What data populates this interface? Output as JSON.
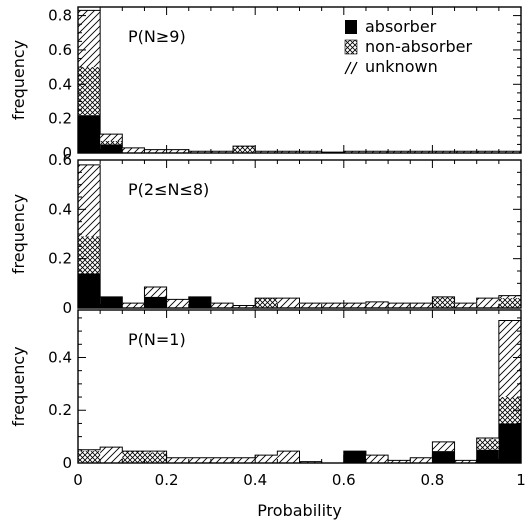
{
  "chart_data": [
    {
      "type": "bar",
      "stacked": true,
      "annotation": "P(N≥9)",
      "ylabel": "frequency",
      "ylim": [
        0,
        0.85
      ],
      "yticks": [
        "0",
        "0.2",
        "0.4",
        "0.6",
        "0.8"
      ],
      "xlim": [
        0,
        1
      ],
      "bin_width": 0.05,
      "legend": {
        "placement": "top-right",
        "entries": [
          "absorber",
          "non-absorber",
          "unknown"
        ]
      },
      "series": [
        {
          "name": "absorber",
          "values": [
            0.22,
            0.05,
            0,
            0,
            0,
            0,
            0,
            0,
            0,
            0,
            0,
            0,
            0,
            0,
            0,
            0,
            0,
            0,
            0,
            0
          ]
        },
        {
          "name": "non-absorber",
          "values": [
            0.28,
            0.02,
            0,
            0,
            0,
            0,
            0,
            0.04,
            0,
            0,
            0,
            0,
            0,
            0,
            0,
            0,
            0,
            0,
            0,
            0
          ]
        },
        {
          "name": "unknown",
          "values": [
            0.33,
            0.04,
            0.03,
            0.02,
            0.02,
            0.01,
            0.01,
            0,
            0.01,
            0.01,
            0.01,
            0.005,
            0.01,
            0.01,
            0.01,
            0.01,
            0.01,
            0.01,
            0.01,
            0.01
          ]
        }
      ]
    },
    {
      "type": "bar",
      "stacked": true,
      "annotation": "P(2≤N≤8)",
      "ylabel": "frequency",
      "ylim": [
        0,
        0.6
      ],
      "yticks": [
        "0",
        "0.2",
        "0.4",
        "0.6"
      ],
      "xlim": [
        0,
        1
      ],
      "bin_width": 0.05,
      "series": [
        {
          "name": "absorber",
          "values": [
            0.14,
            0.045,
            0,
            0.045,
            0,
            0.045,
            0,
            0,
            0,
            0,
            0,
            0,
            0,
            0,
            0,
            0,
            0,
            0,
            0,
            0
          ]
        },
        {
          "name": "non-absorber",
          "values": [
            0.15,
            0,
            0,
            0,
            0,
            0,
            0,
            0,
            0.04,
            0,
            0,
            0,
            0,
            0,
            0,
            0,
            0.045,
            0,
            0,
            0.04
          ]
        },
        {
          "name": "unknown",
          "values": [
            0.29,
            0,
            0.02,
            0.04,
            0.035,
            0,
            0.02,
            0.01,
            0,
            0.04,
            0.02,
            0.02,
            0.02,
            0.025,
            0.02,
            0.02,
            0,
            0.02,
            0.04,
            0.01
          ]
        }
      ]
    },
    {
      "type": "bar",
      "stacked": true,
      "annotation": "P(N=1)",
      "ylabel": "frequency",
      "xlabel": "Probability",
      "ylim": [
        0,
        0.58
      ],
      "yticks": [
        "0",
        "0.2",
        "0.4"
      ],
      "xlim": [
        0,
        1
      ],
      "xticks": [
        "0",
        "0.2",
        "0.4",
        "0.6",
        "0.8",
        "1"
      ],
      "bin_width": 0.05,
      "series": [
        {
          "name": "absorber",
          "values": [
            0,
            0,
            0,
            0,
            0,
            0,
            0,
            0,
            0,
            0,
            0,
            0,
            0.045,
            0,
            0,
            0,
            0.045,
            0,
            0.05,
            0.15
          ]
        },
        {
          "name": "non-absorber",
          "values": [
            0.045,
            0,
            0.045,
            0.04,
            0,
            0,
            0,
            0,
            0,
            0,
            0,
            0,
            0,
            0,
            0,
            0,
            0,
            0,
            0.04,
            0.1
          ]
        },
        {
          "name": "unknown",
          "values": [
            0.005,
            0.06,
            0,
            0.005,
            0.02,
            0.02,
            0.02,
            0.02,
            0.03,
            0.045,
            0.005,
            0,
            0,
            0.03,
            0.01,
            0.02,
            0.035,
            0.01,
            0.005,
            0.29
          ]
        }
      ]
    }
  ]
}
